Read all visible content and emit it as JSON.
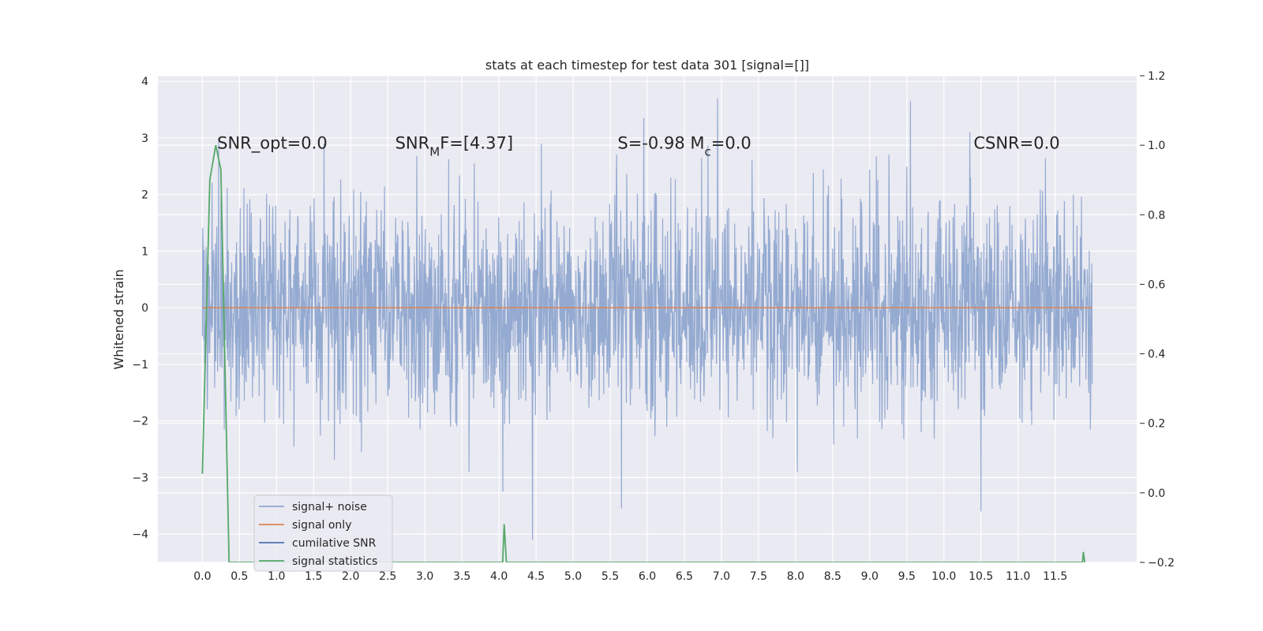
{
  "chart_data": {
    "type": "line",
    "title": "stats at each timestep for test data 301 [signal=[]]",
    "xlabel": "",
    "ylabel": "Whitened strain",
    "xlim": [
      -0.6,
      12.6
    ],
    "ylim": [
      -4.5,
      4.1
    ],
    "y2lim": [
      -0.2,
      1.2
    ],
    "x_ticks": [
      0.0,
      0.5,
      1.0,
      1.5,
      2.0,
      2.5,
      3.0,
      3.5,
      4.0,
      4.5,
      5.0,
      5.5,
      6.0,
      6.5,
      7.0,
      7.5,
      8.0,
      8.5,
      9.0,
      9.5,
      10.0,
      10.5,
      11.0,
      11.5
    ],
    "x_tick_labels": [
      "0.0",
      "0.5",
      "1.0",
      "1.5",
      "2.0",
      "2.5",
      "3.0",
      "3.5",
      "4.0",
      "4.5",
      "5.0",
      "5.5",
      "6.0",
      "6.5",
      "7.0",
      "7.5",
      "8.0",
      "8.5",
      "9.0",
      "9.5",
      "10.0",
      "10.5",
      "11.0",
      "11.5"
    ],
    "y_ticks": [
      -4,
      -3,
      -2,
      -1,
      0,
      1,
      2,
      3,
      4
    ],
    "y_tick_labels": [
      "−4",
      "−3",
      "−2",
      "−1",
      "0",
      "1",
      "2",
      "3",
      "4"
    ],
    "y2_ticks": [
      -0.2,
      0.0,
      0.2,
      0.4,
      0.6,
      0.8,
      1.0,
      1.2
    ],
    "y2_tick_labels": [
      "−0.2",
      "0.0",
      "0.2",
      "0.4",
      "0.6",
      "0.8",
      "1.0",
      "1.2"
    ],
    "grid": true,
    "legend_position": "lower-left",
    "annotations": [
      {
        "text": "SNR_opt=0.0",
        "x": 0.2,
        "y": 2.95
      },
      {
        "text": "SNR_MF=[4.37]",
        "x": 2.6,
        "y": 2.95
      },
      {
        "text": "S=-0.98  M_c=0.0",
        "x": 5.6,
        "y": 2.95
      },
      {
        "text": "CSNR=0.0",
        "x": 10.4,
        "y": 2.95
      }
    ],
    "series": [
      {
        "name": "signal+ noise",
        "color": "#8fa6cf",
        "axis": "left",
        "x_range": [
          0.0,
          12.0
        ],
        "amplitude_typical": [
          -2.0,
          2.0
        ],
        "notable_peaks": [
          {
            "x": 6.95,
            "y": 3.7
          },
          {
            "x": 9.55,
            "y": 3.65
          },
          {
            "x": 5.95,
            "y": 3.35
          },
          {
            "x": 10.35,
            "y": 3.1
          },
          {
            "x": 4.45,
            "y": -4.1
          },
          {
            "x": 10.5,
            "y": -3.6
          },
          {
            "x": 5.65,
            "y": -3.55
          },
          {
            "x": 4.05,
            "y": -3.25
          },
          {
            "x": 0.22,
            "y": 3.0
          }
        ]
      },
      {
        "name": "signal only",
        "color": "#dd8452",
        "axis": "left",
        "x": [
          0.0,
          12.0
        ],
        "y": [
          0.0,
          0.0
        ]
      },
      {
        "name": "cumilative SNR",
        "color": "#4c72b0",
        "axis": "right",
        "x": [],
        "y": []
      },
      {
        "name": "signal statistics",
        "color": "#55a868",
        "axis": "right",
        "x": [
          0.0,
          0.1,
          0.18,
          0.25,
          0.36,
          4.05,
          4.07,
          4.1,
          11.87,
          11.88,
          11.9
        ],
        "y": [
          0.055,
          0.9,
          1.0,
          0.93,
          -0.2,
          -0.2,
          -0.09,
          -0.2,
          -0.2,
          -0.17,
          -0.2
        ]
      }
    ]
  }
}
